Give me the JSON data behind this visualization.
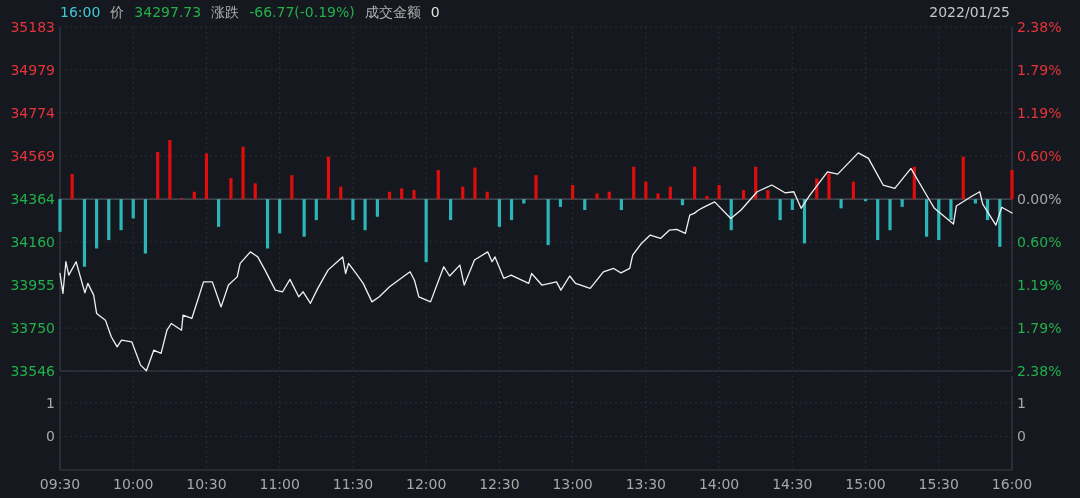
{
  "chart_data": [
    {
      "type": "bar",
      "tick_labels": "y",
      "grid": true,
      "annotations": [
        "16:00",
        "价",
        "34297.73",
        "涨跌",
        "-66.77(-0.19%)",
        "成交金额",
        "0",
        "2022/01/25"
      ],
      "xlim": [
        9.5,
        16
      ],
      "xticks": [
        9.5,
        10,
        10.5,
        11,
        11.5,
        12,
        12.5,
        13,
        13.5,
        14,
        14.5,
        15,
        15.5,
        16
      ],
      "ylim": [
        33546,
        35183
      ],
      "yticks": [
        33546,
        33750,
        33955,
        34160,
        34364,
        34569,
        34774,
        34979,
        35183
      ],
      "y2lim": [
        -2.38,
        2.38
      ],
      "y2ticks": [
        {
          "value": -2.38,
          "label": "2.38%"
        },
        {
          "value": -1.79,
          "label": "1.79%"
        },
        {
          "value": -1.19,
          "label": "1.19%"
        },
        {
          "value": -0.6,
          "label": "0.60%"
        },
        {
          "value": 0,
          "label": "0.00%"
        },
        {
          "value": 0.6,
          "label": "0.60%"
        },
        {
          "value": 1.19,
          "label": "1.19%"
        },
        {
          "value": 1.79,
          "label": "1.79%"
        },
        {
          "value": 2.38,
          "label": "2.38%"
        }
      ],
      "ref_lines": [
        {
          "axis": "y",
          "value": 34364,
          "color": "#5a5e66"
        }
      ],
      "x": [
        9.5,
        9.583,
        9.667,
        9.75,
        9.833,
        9.917,
        10,
        10.083,
        10.167,
        10.25,
        10.333,
        10.417,
        10.5,
        10.583,
        10.667,
        10.75,
        10.833,
        10.917,
        11,
        11.083,
        11.167,
        11.25,
        11.333,
        11.417,
        11.5,
        11.583,
        11.667,
        11.75,
        11.833,
        11.917,
        12,
        12.083,
        12.167,
        12.25,
        12.333,
        12.417,
        12.5,
        12.583,
        12.667,
        12.75,
        12.833,
        12.917,
        13,
        13.083,
        13.167,
        13.25,
        13.333,
        13.417,
        13.5,
        13.583,
        13.667,
        13.75,
        13.833,
        13.917,
        14,
        14.083,
        14.167,
        14.25,
        14.333,
        14.417,
        14.5,
        14.583,
        14.667,
        14.75,
        14.833,
        14.917,
        15,
        15.083,
        15.167,
        15.25,
        15.333,
        15.417,
        15.5,
        15.583,
        15.667,
        15.75,
        15.833,
        15.917,
        16
      ],
      "series": [
        {
          "color": "#e00d0d",
          "base": [
            null,
            34364,
            null,
            null,
            null,
            null,
            null,
            null,
            34364,
            34364,
            34364,
            34364,
            34364,
            null,
            34364,
            34364,
            34364,
            null,
            null,
            34364,
            null,
            null,
            34364,
            34364,
            null,
            null,
            null,
            34364,
            34364,
            34364,
            null,
            34364,
            null,
            34364,
            34364,
            34364,
            null,
            null,
            null,
            34364,
            null,
            null,
            34364,
            null,
            34364,
            34364,
            null,
            34364,
            34364,
            34364,
            34364,
            null,
            34364,
            34364,
            34364,
            null,
            34364,
            34364,
            34364,
            null,
            null,
            null,
            34364,
            34364,
            null,
            34364,
            null,
            null,
            null,
            null,
            34364,
            null,
            null,
            null,
            34364,
            null,
            null,
            null,
            34364
          ],
          "values": [
            null,
            120,
            null,
            null,
            null,
            null,
            null,
            null,
            225,
            281,
            5,
            35,
            217,
            null,
            100,
            249,
            75,
            null,
            null,
            114,
            null,
            null,
            202,
            59,
            null,
            null,
            null,
            35,
            51,
            43,
            null,
            138,
            null,
            59,
            150,
            35,
            null,
            null,
            null,
            114,
            null,
            null,
            67,
            null,
            27,
            35,
            null,
            154,
            83,
            27,
            59,
            null,
            154,
            15,
            67,
            null,
            43,
            154,
            43,
            null,
            null,
            null,
            98,
            122,
            null,
            83,
            null,
            null,
            null,
            null,
            154,
            null,
            null,
            null,
            202,
            null,
            null,
            null,
            138
          ]
        },
        {
          "color": "#2cb5b8",
          "base": [
            34364,
            null,
            34364,
            34364,
            34364,
            34364,
            34364,
            34364,
            null,
            null,
            null,
            null,
            null,
            34364,
            null,
            null,
            null,
            34364,
            34364,
            null,
            34364,
            34364,
            null,
            null,
            34364,
            34364,
            34364,
            null,
            null,
            null,
            34364,
            null,
            34364,
            null,
            null,
            null,
            34364,
            34364,
            34364,
            null,
            34364,
            34364,
            null,
            34364,
            null,
            null,
            34364,
            null,
            null,
            null,
            null,
            34364,
            null,
            null,
            null,
            34364,
            null,
            null,
            null,
            34364,
            34364,
            34364,
            null,
            null,
            34364,
            null,
            34364,
            34364,
            34364,
            34364,
            null,
            34364,
            34364,
            34364,
            null,
            34364,
            34364,
            34364,
            null
          ],
          "values": [
            -156,
            null,
            -322,
            -235,
            -195,
            -148,
            -92,
            -259,
            null,
            null,
            null,
            null,
            null,
            -132,
            null,
            null,
            null,
            -235,
            -163,
            null,
            -179,
            -100,
            null,
            null,
            -100,
            -148,
            -84,
            null,
            null,
            null,
            -300,
            null,
            -100,
            null,
            null,
            null,
            -132,
            -100,
            -21,
            null,
            -219,
            -37,
            null,
            -52,
            null,
            null,
            -52,
            null,
            null,
            null,
            null,
            -29,
            null,
            null,
            null,
            -148,
            null,
            null,
            null,
            -100,
            -52,
            -211,
            null,
            null,
            -44,
            null,
            -10,
            -195,
            -148,
            -37,
            null,
            -179,
            -195,
            -100,
            null,
            -21,
            -100,
            -227,
            null
          ]
        },
        {
          "type": "line",
          "color": "#f0f0f0",
          "x": [
            9.5,
            9.52,
            9.54,
            9.56,
            9.61,
            9.67,
            9.69,
            9.73,
            9.75,
            9.81,
            9.85,
            9.89,
            9.92,
            9.99,
            10.05,
            10.09,
            10.14,
            10.19,
            10.23,
            10.26,
            10.33,
            10.34,
            10.4,
            10.44,
            10.48,
            10.54,
            10.6,
            10.65,
            10.71,
            10.73,
            10.8,
            10.85,
            10.9,
            10.97,
            11.02,
            11.07,
            11.13,
            11.16,
            11.21,
            11.26,
            11.33,
            11.38,
            11.43,
            11.45,
            11.47,
            11.53,
            11.57,
            11.63,
            11.68,
            11.75,
            11.89,
            11.92,
            11.95,
            12.03,
            12.12,
            12.16,
            12.23,
            12.26,
            12.33,
            12.42,
            12.45,
            12.47,
            12.53,
            12.58,
            12.7,
            12.72,
            12.79,
            12.89,
            12.92,
            12.98,
            13.02,
            13.12,
            13.21,
            13.28,
            13.33,
            13.39,
            13.41,
            13.47,
            13.53,
            13.6,
            13.66,
            13.71,
            13.77,
            13.8,
            13.83,
            13.86,
            13.9,
            13.97,
            14.08,
            14.15,
            14.26,
            14.36,
            14.45,
            14.51,
            14.56,
            14.62,
            14.74,
            14.81,
            14.95,
            15.02,
            15.12,
            15.2,
            15.31,
            15.43,
            15.47,
            15.6,
            15.62,
            15.72,
            15.78,
            15.8,
            15.89,
            15.93,
            16
          ],
          "values": [
            34010,
            33915,
            34066,
            34002,
            34066,
            33918,
            33963,
            33907,
            33820,
            33788,
            33709,
            33661,
            33693,
            33685,
            33574,
            33547,
            33645,
            33630,
            33740,
            33772,
            33740,
            33812,
            33796,
            33883,
            33970,
            33970,
            33851,
            33955,
            33994,
            34058,
            34113,
            34089,
            34026,
            33931,
            33923,
            33982,
            33899,
            33923,
            33868,
            33939,
            34026,
            34058,
            34089,
            34010,
            34058,
            34002,
            33963,
            33875,
            33899,
            33947,
            34018,
            33978,
            33899,
            33875,
            34042,
            33998,
            34050,
            33955,
            34074,
            34113,
            34066,
            34089,
            33987,
            34002,
            33963,
            34010,
            33955,
            33970,
            33931,
            33998,
            33963,
            33939,
            34018,
            34034,
            34013,
            34034,
            34097,
            34153,
            34193,
            34177,
            34216,
            34220,
            34201,
            34288,
            34296,
            34312,
            34327,
            34351,
            34272,
            34312,
            34399,
            34431,
            34394,
            34399,
            34320,
            34383,
            34494,
            34483,
            34584,
            34558,
            34431,
            34415,
            34510,
            34367,
            34320,
            34245,
            34331,
            34375,
            34399,
            34340,
            34240,
            34325,
            34298
          ]
        }
      ]
    },
    {
      "type": "bar",
      "grid": true,
      "xlim": [
        9.5,
        16
      ],
      "xticks": [
        {
          "value": 9.5,
          "label": "09:30"
        },
        {
          "value": 10,
          "label": "10:00"
        },
        {
          "value": 10.5,
          "label": "10:30"
        },
        {
          "value": 11,
          "label": "11:00"
        },
        {
          "value": 11.5,
          "label": "11:30"
        },
        {
          "value": 12,
          "label": "12:00"
        },
        {
          "value": 12.5,
          "label": "12:30"
        },
        {
          "value": 13,
          "label": "13:00"
        },
        {
          "value": 13.5,
          "label": "13:30"
        },
        {
          "value": 14,
          "label": "14:00"
        },
        {
          "value": 14.5,
          "label": "14:30"
        },
        {
          "value": 15,
          "label": "15:00"
        },
        {
          "value": 15.5,
          "label": "15:30"
        },
        {
          "value": 16,
          "label": "16:00"
        }
      ],
      "ylim": [
        -1,
        1.8
      ],
      "yticks": [
        0,
        1
      ],
      "y2lim": [
        -1,
        1.8
      ],
      "y2ticks": [
        0,
        1
      ]
    }
  ]
}
